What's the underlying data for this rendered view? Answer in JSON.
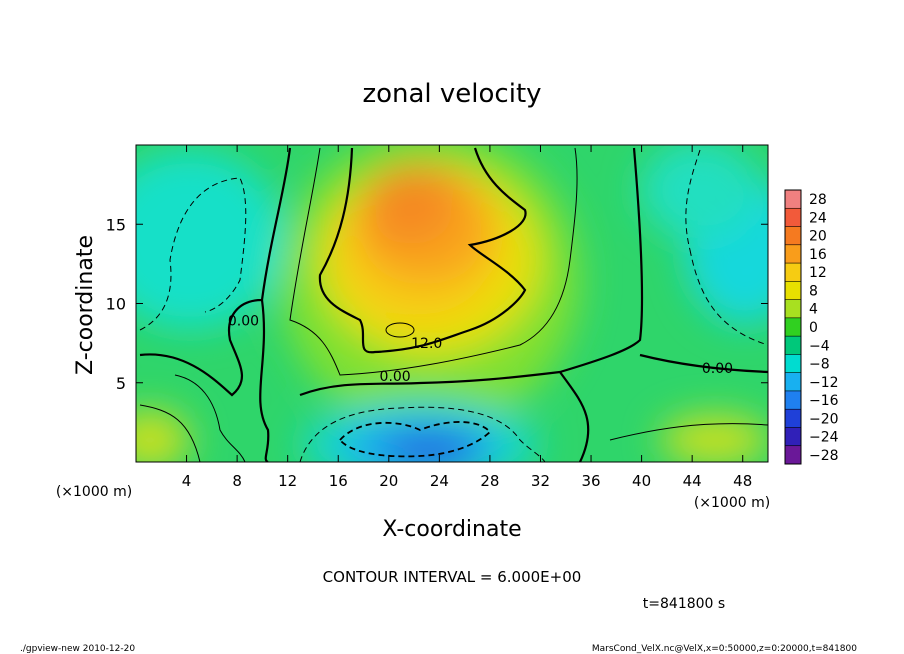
{
  "chart_data": {
    "type": "heatmap",
    "title": "zonal velocity",
    "xlabel": "X-coordinate",
    "ylabel": "Z-coordinate",
    "x_unit_label": "(×1000 m)",
    "y_unit_label": "(×1000 m)",
    "x_range": [
      0,
      50
    ],
    "y_range": [
      0,
      20
    ],
    "x_ticks": [
      4,
      8,
      12,
      16,
      20,
      24,
      28,
      32,
      36,
      40,
      44,
      48
    ],
    "y_ticks": [
      5,
      10,
      15
    ],
    "grid": false,
    "colorbar": {
      "levels": [
        28,
        24,
        20,
        16,
        12,
        8,
        4,
        0,
        -4,
        -8,
        -12,
        -16,
        -20,
        -24,
        -28
      ],
      "colors": [
        "#f08080",
        "#f25a3a",
        "#f57a20",
        "#f99d1b",
        "#f6cc12",
        "#e8e000",
        "#a8e020",
        "#30d020",
        "#00c87a",
        "#00dcd0",
        "#18b0f0",
        "#1f80f0",
        "#1f40d8",
        "#3020b8",
        "#6a1898"
      ]
    },
    "contour_labels": [
      {
        "text": "12.0",
        "x": 23.0,
        "y": 7.2
      },
      {
        "text": "0.00",
        "x": 20.5,
        "y": 5.1
      },
      {
        "text": "0.00",
        "x": 8.5,
        "y": 8.6
      },
      {
        "text": "0.00",
        "x": 46.0,
        "y": 5.6
      }
    ],
    "contour_interval_text": "CONTOUR INTERVAL = 6.000E+00",
    "time_text": "t=841800 s"
  },
  "footer": {
    "left": "./gpview-new  2010-12-20",
    "right": "MarsCond_VelX.nc@VelX,x=0:50000,z=0:20000,t=841800"
  }
}
